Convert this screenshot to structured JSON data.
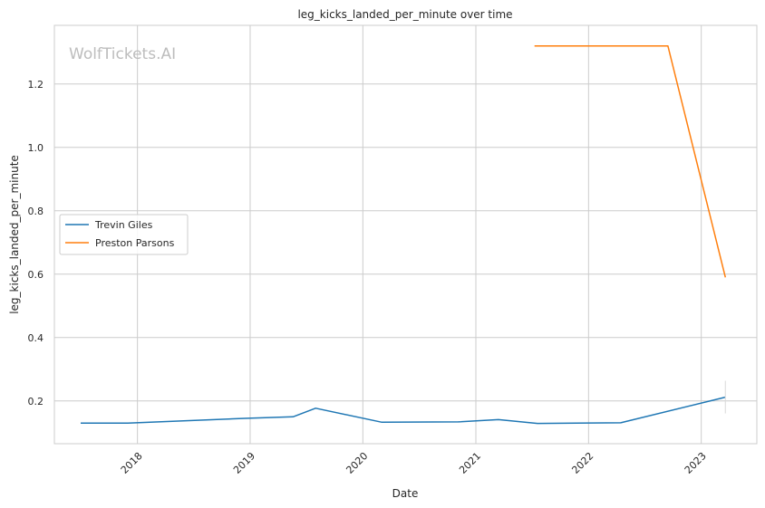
{
  "chart_data": {
    "type": "line",
    "title": "leg_kicks_landed_per_minute over time",
    "xlabel": "Date",
    "ylabel": "leg_kicks_landed_per_minute",
    "watermark": "WolfTickets.AI",
    "xlim": [
      "2017-04-07",
      "2023-06-30"
    ],
    "ylim": [
      0.065,
      1.385
    ],
    "x_ticks": [
      "2018-01-01",
      "2019-01-01",
      "2020-01-01",
      "2021-01-01",
      "2022-01-01",
      "2023-01-01"
    ],
    "x_tick_labels": [
      "2018",
      "2019",
      "2020",
      "2021",
      "2022",
      "2023"
    ],
    "y_ticks": [
      0.2,
      0.4,
      0.6,
      0.8,
      1.0,
      1.2
    ],
    "y_tick_labels": [
      "0.2",
      "0.4",
      "0.6",
      "0.8",
      "1.0",
      "1.2"
    ],
    "grid": true,
    "legend_position": "center-left",
    "series": [
      {
        "name": "Trevin Giles",
        "color": "#1f77b4",
        "x": [
          "2017-07-01",
          "2017-12-01",
          "2018-12-15",
          "2019-05-20",
          "2019-08-01",
          "2020-03-01",
          "2020-11-05",
          "2021-03-15",
          "2021-07-20",
          "2022-04-15",
          "2023-03-20"
        ],
        "y": [
          0.13,
          0.13,
          0.145,
          0.15,
          0.177,
          0.133,
          0.134,
          0.141,
          0.129,
          0.131,
          0.212
        ]
      },
      {
        "name": "Preston Parsons",
        "color": "#ff7f0e",
        "x": [
          "2021-07-10",
          "2022-09-15",
          "2023-03-20"
        ],
        "y": [
          1.32,
          1.32,
          0.59
        ]
      }
    ]
  }
}
